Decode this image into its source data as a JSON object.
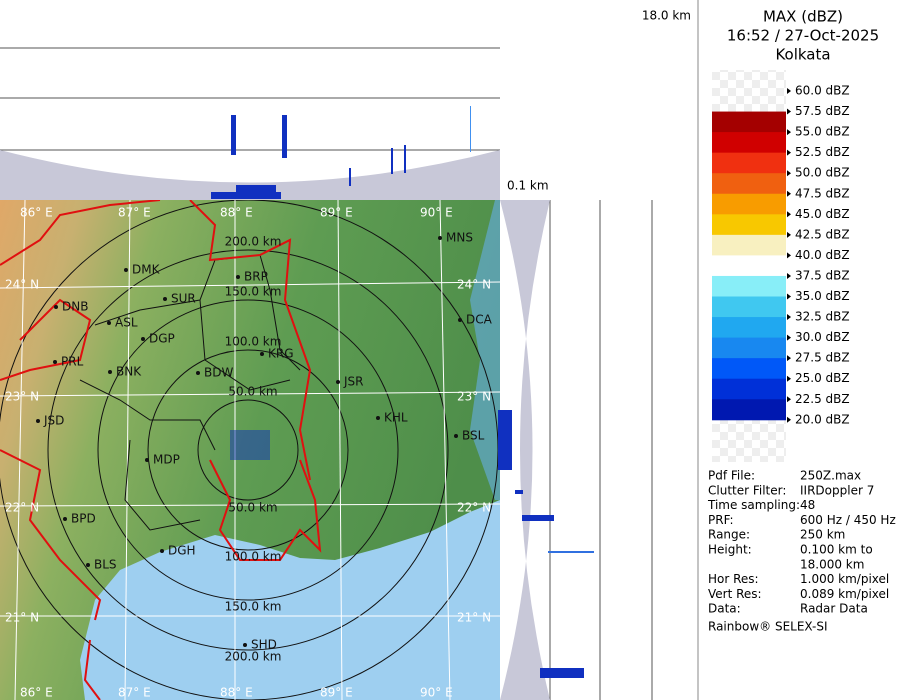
{
  "header": {
    "title": "MAX (dBZ)",
    "datetime": "16:52 / 27-Oct-2025",
    "station": "Kolkata"
  },
  "scale": {
    "top_height": "18.0 km",
    "bottom_height": "0.1 km"
  },
  "legend": {
    "labels": [
      "60.0 dBZ",
      "57.5 dBZ",
      "55.0 dBZ",
      "52.5 dBZ",
      "50.0 dBZ",
      "47.5 dBZ",
      "45.0 dBZ",
      "42.5 dBZ",
      "40.0 dBZ",
      "37.5 dBZ",
      "35.0 dBZ",
      "32.5 dBZ",
      "30.0 dBZ",
      "27.5 dBZ",
      "25.0 dBZ",
      "22.5 dBZ",
      "20.0 dBZ"
    ],
    "colors": [
      null,
      "#a40000",
      "#d00000",
      "#f03010",
      "#f06010",
      "#f89c00",
      "#f8c800",
      "#f8f0c0",
      "#ffffff",
      "#88eef8",
      "#40c8f0",
      "#20a8f0",
      "#1888f0",
      "#0058f8",
      "#0030d8",
      "#0018b0"
    ]
  },
  "info": [
    {
      "label": "Pdf File:",
      "value": [
        "250Z.max"
      ]
    },
    {
      "label": "Clutter Filter:",
      "value": [
        "IIRDoppler 7"
      ]
    },
    {
      "label": "Time sampling:",
      "value": [
        "48"
      ]
    },
    {
      "label": "PRF:",
      "value": [
        "600 Hz / 450 Hz"
      ]
    },
    {
      "label": "Range:",
      "value": [
        "250 km"
      ]
    },
    {
      "label": "Height:",
      "value": [
        "0.100 km to",
        "18.000 km"
      ]
    },
    {
      "label": "Hor Res:",
      "value": [
        "1.000 km/pixel"
      ]
    },
    {
      "label": "Vert Res:",
      "value": [
        "0.089 km/pixel"
      ]
    },
    {
      "label": "Data:",
      "value": [
        "Radar Data"
      ]
    }
  ],
  "footer": "Rainbow® SELEX-SI",
  "map": {
    "lon_labels": [
      "86° E",
      "87° E",
      "88° E",
      "89° E",
      "90° E"
    ],
    "lat_labels": [
      "24° N",
      "23° N",
      "22° N",
      "21° N"
    ],
    "range_labels": [
      "50.0 km",
      "100.0 km",
      "150.0 km",
      "200.0 km"
    ],
    "cities": [
      "MNS",
      "BRP",
      "DMK",
      "DNB",
      "SUR",
      "ASL",
      "DGP",
      "KRG",
      "PRL",
      "BNK",
      "BDW",
      "JSR",
      "KHL",
      "DCA",
      "BSL",
      "JSD",
      "MDP",
      "BPD",
      "DGH",
      "BLS",
      "SHD"
    ]
  }
}
